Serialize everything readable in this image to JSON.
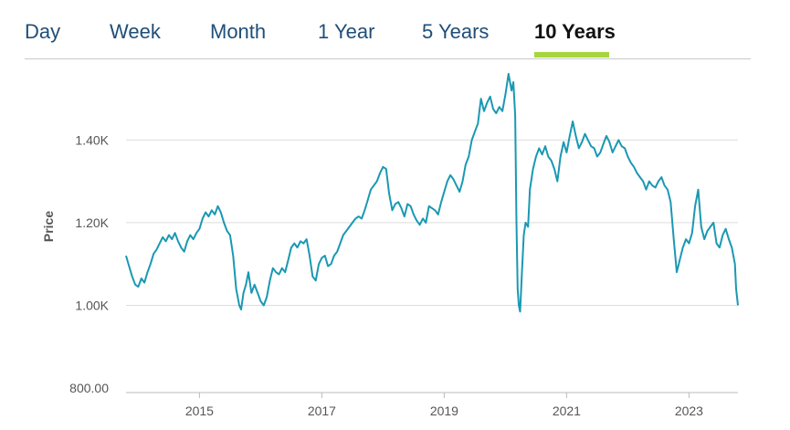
{
  "tabs": [
    {
      "label": "Day",
      "active": false
    },
    {
      "label": "Week",
      "active": false
    },
    {
      "label": "Month",
      "active": false
    },
    {
      "label": "1 Year",
      "active": false
    },
    {
      "label": "5 Years",
      "active": false
    },
    {
      "label": "10 Years",
      "active": true
    }
  ],
  "colors": {
    "accent": "#a6d63c",
    "series": "#1a98b3",
    "tab_text": "#1f4e79",
    "grid": "#dddddd"
  },
  "chart_data": {
    "type": "line",
    "title": "",
    "xlabel": "",
    "ylabel": "Price",
    "ylim": [
      800,
      1540
    ],
    "xlim": [
      2013.8,
      2023.8
    ],
    "grid": "horizontal",
    "y_ticks": [
      {
        "value": 800,
        "label": "800.00"
      },
      {
        "value": 1000,
        "label": "1.00K"
      },
      {
        "value": 1200,
        "label": "1.20K"
      },
      {
        "value": 1400,
        "label": "1.40K"
      }
    ],
    "x_ticks": [
      {
        "value": 2015,
        "label": "2015"
      },
      {
        "value": 2017,
        "label": "2017"
      },
      {
        "value": 2019,
        "label": "2019"
      },
      {
        "value": 2021,
        "label": "2021"
      },
      {
        "value": 2023,
        "label": "2023"
      }
    ],
    "series": [
      {
        "points": [
          [
            2013.8,
            1120
          ],
          [
            2013.85,
            1095
          ],
          [
            2013.9,
            1070
          ],
          [
            2013.95,
            1050
          ],
          [
            2014.0,
            1045
          ],
          [
            2014.05,
            1065
          ],
          [
            2014.1,
            1055
          ],
          [
            2014.15,
            1080
          ],
          [
            2014.2,
            1100
          ],
          [
            2014.25,
            1125
          ],
          [
            2014.3,
            1135
          ],
          [
            2014.35,
            1150
          ],
          [
            2014.4,
            1165
          ],
          [
            2014.45,
            1155
          ],
          [
            2014.5,
            1170
          ],
          [
            2014.55,
            1160
          ],
          [
            2014.6,
            1175
          ],
          [
            2014.65,
            1155
          ],
          [
            2014.7,
            1140
          ],
          [
            2014.75,
            1130
          ],
          [
            2014.8,
            1155
          ],
          [
            2014.85,
            1170
          ],
          [
            2014.9,
            1160
          ],
          [
            2014.95,
            1175
          ],
          [
            2015.0,
            1185
          ],
          [
            2015.05,
            1210
          ],
          [
            2015.1,
            1225
          ],
          [
            2015.15,
            1215
          ],
          [
            2015.2,
            1230
          ],
          [
            2015.25,
            1220
          ],
          [
            2015.3,
            1240
          ],
          [
            2015.35,
            1225
          ],
          [
            2015.4,
            1200
          ],
          [
            2015.45,
            1180
          ],
          [
            2015.5,
            1170
          ],
          [
            2015.55,
            1120
          ],
          [
            2015.6,
            1040
          ],
          [
            2015.65,
            1000
          ],
          [
            2015.68,
            990
          ],
          [
            2015.72,
            1030
          ],
          [
            2015.76,
            1050
          ],
          [
            2015.8,
            1080
          ],
          [
            2015.85,
            1030
          ],
          [
            2015.9,
            1050
          ],
          [
            2015.95,
            1030
          ],
          [
            2016.0,
            1010
          ],
          [
            2016.05,
            1000
          ],
          [
            2016.1,
            1020
          ],
          [
            2016.15,
            1060
          ],
          [
            2016.2,
            1090
          ],
          [
            2016.25,
            1080
          ],
          [
            2016.3,
            1075
          ],
          [
            2016.35,
            1090
          ],
          [
            2016.4,
            1080
          ],
          [
            2016.45,
            1110
          ],
          [
            2016.5,
            1140
          ],
          [
            2016.55,
            1150
          ],
          [
            2016.6,
            1140
          ],
          [
            2016.65,
            1155
          ],
          [
            2016.7,
            1150
          ],
          [
            2016.75,
            1160
          ],
          [
            2016.8,
            1120
          ],
          [
            2016.85,
            1070
          ],
          [
            2016.9,
            1060
          ],
          [
            2016.95,
            1100
          ],
          [
            2017.0,
            1115
          ],
          [
            2017.05,
            1120
          ],
          [
            2017.1,
            1095
          ],
          [
            2017.15,
            1100
          ],
          [
            2017.2,
            1120
          ],
          [
            2017.25,
            1130
          ],
          [
            2017.3,
            1150
          ],
          [
            2017.35,
            1170
          ],
          [
            2017.4,
            1180
          ],
          [
            2017.45,
            1190
          ],
          [
            2017.5,
            1200
          ],
          [
            2017.55,
            1210
          ],
          [
            2017.6,
            1215
          ],
          [
            2017.65,
            1210
          ],
          [
            2017.7,
            1230
          ],
          [
            2017.75,
            1255
          ],
          [
            2017.8,
            1280
          ],
          [
            2017.85,
            1290
          ],
          [
            2017.9,
            1300
          ],
          [
            2017.95,
            1320
          ],
          [
            2018.0,
            1335
          ],
          [
            2018.05,
            1330
          ],
          [
            2018.1,
            1270
          ],
          [
            2018.15,
            1230
          ],
          [
            2018.2,
            1245
          ],
          [
            2018.25,
            1250
          ],
          [
            2018.3,
            1235
          ],
          [
            2018.35,
            1215
          ],
          [
            2018.4,
            1245
          ],
          [
            2018.45,
            1240
          ],
          [
            2018.5,
            1220
          ],
          [
            2018.55,
            1205
          ],
          [
            2018.6,
            1195
          ],
          [
            2018.65,
            1210
          ],
          [
            2018.7,
            1200
          ],
          [
            2018.75,
            1240
          ],
          [
            2018.8,
            1235
          ],
          [
            2018.85,
            1230
          ],
          [
            2018.9,
            1220
          ],
          [
            2018.95,
            1250
          ],
          [
            2019.0,
            1275
          ],
          [
            2019.05,
            1300
          ],
          [
            2019.1,
            1315
          ],
          [
            2019.15,
            1305
          ],
          [
            2019.2,
            1290
          ],
          [
            2019.25,
            1275
          ],
          [
            2019.3,
            1300
          ],
          [
            2019.35,
            1340
          ],
          [
            2019.4,
            1360
          ],
          [
            2019.45,
            1400
          ],
          [
            2019.5,
            1420
          ],
          [
            2019.55,
            1440
          ],
          [
            2019.6,
            1500
          ],
          [
            2019.65,
            1470
          ],
          [
            2019.7,
            1490
          ],
          [
            2019.75,
            1505
          ],
          [
            2019.8,
            1475
          ],
          [
            2019.85,
            1465
          ],
          [
            2019.9,
            1480
          ],
          [
            2019.95,
            1470
          ],
          [
            2020.0,
            1510
          ],
          [
            2020.05,
            1560
          ],
          [
            2020.1,
            1520
          ],
          [
            2020.13,
            1540
          ],
          [
            2020.16,
            1460
          ],
          [
            2020.18,
            1200
          ],
          [
            2020.2,
            1040
          ],
          [
            2020.22,
            1000
          ],
          [
            2020.24,
            985
          ],
          [
            2020.27,
            1080
          ],
          [
            2020.3,
            1170
          ],
          [
            2020.33,
            1200
          ],
          [
            2020.37,
            1190
          ],
          [
            2020.4,
            1280
          ],
          [
            2020.45,
            1330
          ],
          [
            2020.5,
            1360
          ],
          [
            2020.55,
            1380
          ],
          [
            2020.6,
            1365
          ],
          [
            2020.65,
            1385
          ],
          [
            2020.7,
            1360
          ],
          [
            2020.75,
            1350
          ],
          [
            2020.8,
            1330
          ],
          [
            2020.85,
            1300
          ],
          [
            2020.9,
            1360
          ],
          [
            2020.95,
            1395
          ],
          [
            2021.0,
            1370
          ],
          [
            2021.05,
            1410
          ],
          [
            2021.1,
            1445
          ],
          [
            2021.15,
            1410
          ],
          [
            2021.2,
            1380
          ],
          [
            2021.25,
            1395
          ],
          [
            2021.3,
            1415
          ],
          [
            2021.35,
            1400
          ],
          [
            2021.4,
            1385
          ],
          [
            2021.45,
            1380
          ],
          [
            2021.5,
            1360
          ],
          [
            2021.55,
            1370
          ],
          [
            2021.6,
            1390
          ],
          [
            2021.65,
            1410
          ],
          [
            2021.7,
            1395
          ],
          [
            2021.75,
            1370
          ],
          [
            2021.8,
            1385
          ],
          [
            2021.85,
            1400
          ],
          [
            2021.9,
            1385
          ],
          [
            2021.95,
            1380
          ],
          [
            2022.0,
            1360
          ],
          [
            2022.05,
            1345
          ],
          [
            2022.1,
            1335
          ],
          [
            2022.15,
            1320
          ],
          [
            2022.2,
            1310
          ],
          [
            2022.25,
            1300
          ],
          [
            2022.3,
            1280
          ],
          [
            2022.35,
            1300
          ],
          [
            2022.4,
            1290
          ],
          [
            2022.45,
            1285
          ],
          [
            2022.5,
            1300
          ],
          [
            2022.55,
            1310
          ],
          [
            2022.6,
            1290
          ],
          [
            2022.65,
            1280
          ],
          [
            2022.7,
            1250
          ],
          [
            2022.75,
            1160
          ],
          [
            2022.8,
            1080
          ],
          [
            2022.85,
            1110
          ],
          [
            2022.9,
            1140
          ],
          [
            2022.95,
            1160
          ],
          [
            2023.0,
            1150
          ],
          [
            2023.05,
            1175
          ],
          [
            2023.1,
            1240
          ],
          [
            2023.15,
            1280
          ],
          [
            2023.2,
            1190
          ],
          [
            2023.25,
            1160
          ],
          [
            2023.3,
            1180
          ],
          [
            2023.35,
            1190
          ],
          [
            2023.4,
            1200
          ],
          [
            2023.45,
            1150
          ],
          [
            2023.5,
            1140
          ],
          [
            2023.55,
            1170
          ],
          [
            2023.6,
            1185
          ],
          [
            2023.65,
            1160
          ],
          [
            2023.7,
            1140
          ],
          [
            2023.75,
            1100
          ],
          [
            2023.77,
            1040
          ],
          [
            2023.8,
            1000
          ]
        ]
      }
    ]
  }
}
